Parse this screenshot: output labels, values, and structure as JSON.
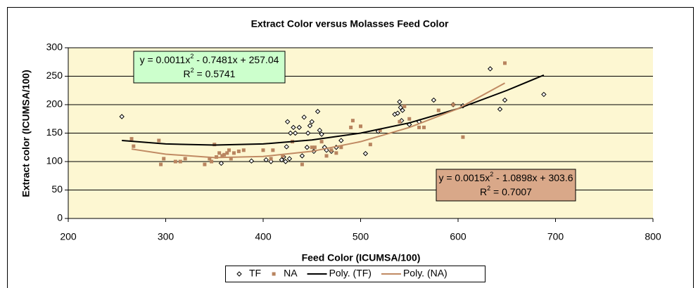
{
  "chart_data": {
    "type": "scatter",
    "title": "Extract Color versus Molasses Feed Color",
    "x_label": "Feed Color (ICUMSA/100)",
    "y_label": "Extract color (ICUMSA/100)",
    "xlim": [
      200,
      800
    ],
    "xticks": [
      200,
      300,
      400,
      500,
      600,
      700,
      800
    ],
    "ylim": [
      0,
      300
    ],
    "yticks": [
      0,
      50,
      100,
      150,
      200,
      250,
      300
    ],
    "grid": true,
    "legend": "bottom",
    "series": [
      {
        "name": "TF",
        "kind": "marker",
        "marker": "diamond",
        "color": "#000000",
        "x": [
          255,
          357,
          388,
          403,
          408,
          419,
          421,
          423,
          424,
          425,
          427,
          428,
          431,
          433,
          437,
          440,
          442,
          445,
          446,
          448,
          450,
          452,
          456,
          458,
          460,
          463,
          465,
          470,
          475,
          480,
          505,
          518,
          535,
          538,
          540,
          541,
          542,
          543,
          550,
          560,
          575,
          595,
          605,
          633,
          643,
          648,
          688
        ],
        "values": [
          179,
          97,
          101,
          103,
          100,
          103,
          108,
          100,
          126,
          170,
          105,
          150,
          160,
          150,
          160,
          110,
          178,
          125,
          150,
          163,
          170,
          118,
          188,
          155,
          148,
          125,
          120,
          118,
          125,
          137,
          114,
          153,
          183,
          185,
          205,
          195,
          172,
          190,
          165,
          170,
          208,
          200,
          198,
          263,
          192,
          208,
          218
        ]
      },
      {
        "name": "NA",
        "kind": "marker",
        "marker": "square",
        "color": "#b8845f",
        "x": [
          265,
          267,
          293,
          295,
          298,
          310,
          315,
          320,
          340,
          345,
          347,
          350,
          352,
          355,
          358,
          360,
          363,
          365,
          367,
          370,
          375,
          380,
          400,
          408,
          410,
          420,
          430,
          440,
          450,
          453,
          460,
          465,
          470,
          475,
          480,
          490,
          492,
          500,
          510,
          520,
          540,
          545,
          550,
          560,
          565,
          580,
          595,
          605,
          648
        ],
        "values": [
          140,
          127,
          137,
          95,
          105,
          100,
          100,
          105,
          95,
          105,
          100,
          130,
          108,
          115,
          110,
          112,
          115,
          120,
          105,
          115,
          118,
          120,
          120,
          105,
          120,
          110,
          135,
          95,
          125,
          125,
          135,
          110,
          120,
          115,
          125,
          160,
          172,
          162,
          130,
          155,
          170,
          197,
          175,
          160,
          160,
          190,
          200,
          143,
          273
        ]
      },
      {
        "name": "Poly. (TF)",
        "kind": "line",
        "color": "#000000",
        "x": [
          255,
          300,
          350,
          400,
          450,
          500,
          550,
          600,
          650,
          688
        ],
        "values": [
          137,
          131,
          129,
          131,
          138,
          150,
          168,
          193,
          225,
          252
        ]
      },
      {
        "name": "Poly. (NA)",
        "kind": "line",
        "color": "#c08a63",
        "x": [
          265,
          300,
          350,
          400,
          450,
          500,
          550,
          600,
          648
        ],
        "values": [
          122,
          113,
          107,
          109,
          118,
          135,
          160,
          193,
          238
        ]
      }
    ],
    "annotations": [
      {
        "fill": "#ccffcc",
        "lines": [
          [
            "y = 0.0011x",
            "2",
            " - 0.7481x + 257.04"
          ],
          [
            "R",
            "2",
            " = 0.5741"
          ]
        ]
      },
      {
        "fill": "#d9a889",
        "lines": [
          [
            "y = 0.0015x",
            "2",
            " - 1.0898x + 303.6"
          ],
          [
            "R",
            "2",
            " = 0.7007"
          ]
        ]
      }
    ]
  }
}
